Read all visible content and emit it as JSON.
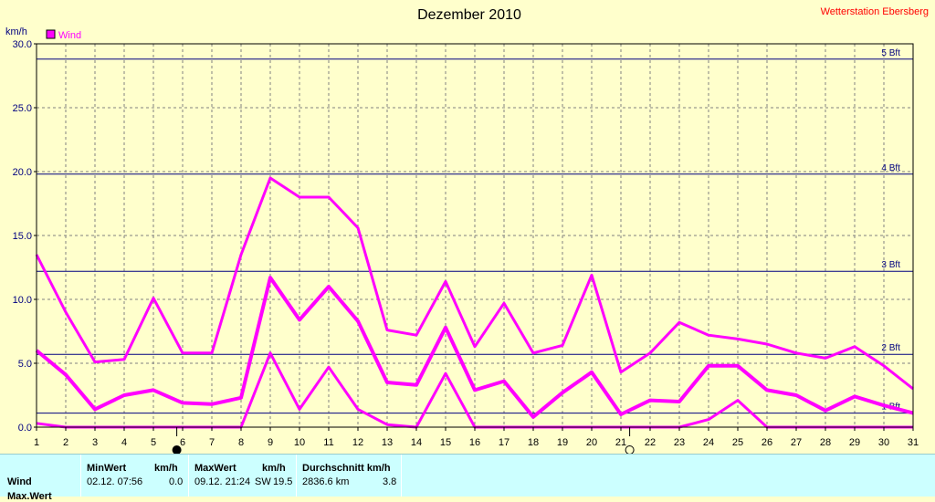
{
  "title": "Dezember 2010",
  "station": "Wetterstation Ebersberg",
  "unit_label": "km/h",
  "legend_label": "Wind",
  "colors": {
    "series": "#ff00ff",
    "bft": "#000080",
    "grid": "#808080",
    "bg": "#ffffcc",
    "station": "#ff0000"
  },
  "chart_data": {
    "type": "line",
    "xlabel": "",
    "ylabel": "km/h",
    "ylim": [
      0,
      30
    ],
    "xlim": [
      1,
      31
    ],
    "yticks": [
      "0.0",
      "5.0",
      "10.0",
      "15.0",
      "20.0",
      "25.0",
      "30.0"
    ],
    "xticks": [
      "1",
      "2",
      "3",
      "4",
      "5",
      "6",
      "7",
      "8",
      "9",
      "10",
      "11",
      "12",
      "13",
      "14",
      "15",
      "16",
      "17",
      "18",
      "19",
      "20",
      "21",
      "22",
      "23",
      "24",
      "25",
      "26",
      "27",
      "28",
      "29",
      "30",
      "31"
    ],
    "grid": true,
    "legend": "top-left",
    "x": [
      1,
      2,
      3,
      4,
      5,
      6,
      7,
      8,
      9,
      10,
      11,
      12,
      13,
      14,
      15,
      16,
      17,
      18,
      19,
      20,
      21,
      22,
      23,
      24,
      25,
      26,
      27,
      28,
      29,
      30,
      31
    ],
    "series": [
      {
        "name": "Wind",
        "role": "max",
        "values": [
          13.5,
          9.0,
          5.1,
          5.3,
          10.1,
          5.8,
          5.8,
          13.5,
          19.5,
          18.0,
          18.0,
          15.6,
          7.6,
          7.2,
          11.4,
          6.3,
          9.7,
          5.8,
          6.4,
          11.9,
          4.3,
          5.8,
          8.2,
          7.2,
          6.9,
          6.5,
          5.8,
          5.4,
          6.3,
          4.8,
          3.0
        ]
      },
      {
        "name": "",
        "role": "avg",
        "values": [
          6.0,
          4.1,
          1.4,
          2.5,
          2.9,
          1.9,
          1.8,
          2.3,
          11.7,
          8.4,
          11.0,
          8.3,
          3.5,
          3.3,
          7.8,
          2.9,
          3.6,
          0.8,
          2.7,
          4.3,
          1.0,
          2.1,
          2.0,
          4.8,
          4.8,
          2.9,
          2.5,
          1.3,
          2.4,
          1.7,
          1.1
        ]
      },
      {
        "name": "",
        "role": "min",
        "values": [
          0.3,
          0.0,
          0.0,
          0.0,
          0.0,
          0.0,
          0.0,
          0.0,
          5.8,
          1.4,
          4.7,
          1.4,
          0.2,
          0.0,
          4.2,
          0.0,
          0.0,
          0.0,
          0.0,
          0.0,
          0.0,
          0.0,
          0.0,
          0.6,
          2.1,
          0.0,
          0.0,
          0.0,
          0.0,
          0.0,
          0.0
        ]
      }
    ],
    "reference_lines": [
      {
        "label": "1 Bft",
        "value": 1.1
      },
      {
        "label": "2 Bft",
        "value": 5.7
      },
      {
        "label": "3 Bft",
        "value": 12.2
      },
      {
        "label": "4 Bft",
        "value": 19.8
      },
      {
        "label": "5 Bft",
        "value": 28.8
      }
    ],
    "moon_phases": [
      {
        "day": 5.8,
        "phase": "new-moon"
      },
      {
        "day": 21.3,
        "phase": "full-moon"
      }
    ]
  },
  "stats": {
    "headers": {
      "min": "MinWert",
      "min_unit": "km/h",
      "max": "MaxWert",
      "max_unit": "km/h",
      "avg": "Durchschnitt km/h"
    },
    "rows": [
      {
        "label": "Wind",
        "min_time": "02.12.  07:56",
        "min_value": "0.0",
        "max_time": "09.12.  21:24",
        "max_dir": "SW",
        "max_value": "19.5",
        "avg_km": "2836.6 km",
        "avg_value": "3.8"
      },
      {
        "label": "Max.Wert"
      }
    ]
  }
}
